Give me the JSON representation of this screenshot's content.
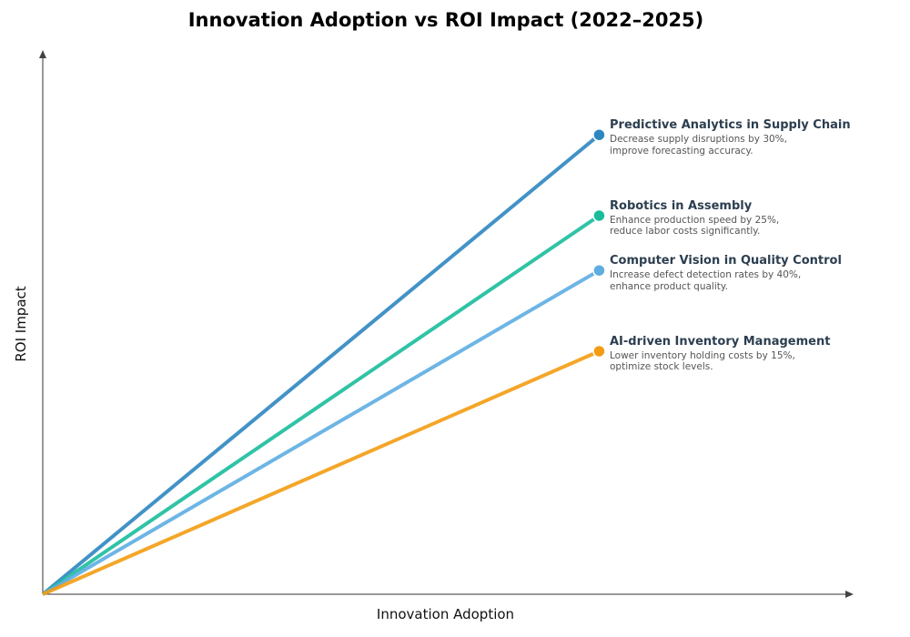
{
  "chart_data": {
    "type": "line",
    "title": "Innovation Adoption vs ROI Impact (2022–2025)",
    "xlabel": "Innovation Adoption",
    "ylabel": "ROI Impact",
    "xlim": [
      0,
      1
    ],
    "ylim": [
      0,
      1
    ],
    "grid": false,
    "series": [
      {
        "name": "Predictive Analytics in Supply Chain",
        "description": "Decrease supply disruptions by 30%, improve forecasting accuracy.",
        "color": "#2e86c1",
        "points": [
          [
            0,
            0
          ],
          [
            0.687,
            0.847
          ]
        ]
      },
      {
        "name": "Robotics in Assembly",
        "description": "Enhance production speed by 25%, reduce labor costs significantly.",
        "color": "#1abc9c",
        "points": [
          [
            0,
            0
          ],
          [
            0.687,
            0.698
          ]
        ]
      },
      {
        "name": "Computer Vision in Quality Control",
        "description": "Increase defect detection rates by 40%, enhance product quality.",
        "color": "#5dade2",
        "points": [
          [
            0,
            0
          ],
          [
            0.687,
            0.597
          ]
        ]
      },
      {
        "name": "AI-driven Inventory Management",
        "description": "Lower inventory holding costs by 15%, optimize stock levels.",
        "color": "#f39c12",
        "points": [
          [
            0,
            0
          ],
          [
            0.687,
            0.448
          ]
        ]
      }
    ]
  }
}
